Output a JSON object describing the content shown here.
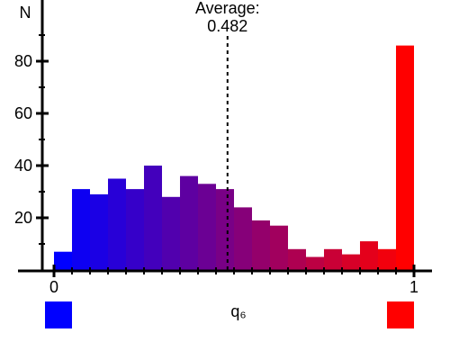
{
  "chart_data": {
    "type": "bar",
    "ylabel": "N",
    "xlabel": "q₆",
    "xlim": [
      0,
      1
    ],
    "ylim": [
      0,
      100
    ],
    "bin_width": 0.05,
    "bin_starts": [
      0.0,
      0.05,
      0.1,
      0.15,
      0.2,
      0.25,
      0.3,
      0.35,
      0.4,
      0.45,
      0.5,
      0.55,
      0.6,
      0.65,
      0.7,
      0.75,
      0.8,
      0.85,
      0.9,
      0.95
    ],
    "values": [
      7,
      31,
      29,
      35,
      31,
      40,
      28,
      36,
      33,
      31,
      24,
      19,
      17,
      8,
      5,
      8,
      6,
      11,
      8,
      86
    ],
    "y_ticks": [
      20,
      40,
      60,
      80
    ],
    "x_ticks": [
      0,
      1
    ],
    "x_tick_labels": [
      "0",
      "1"
    ],
    "average_line": {
      "x": 0.482,
      "label_line1": "Average:",
      "label_line2": "0.482"
    },
    "color_start": "#0000ff",
    "color_end": "#ff0000",
    "grid": false,
    "legend": "none"
  }
}
